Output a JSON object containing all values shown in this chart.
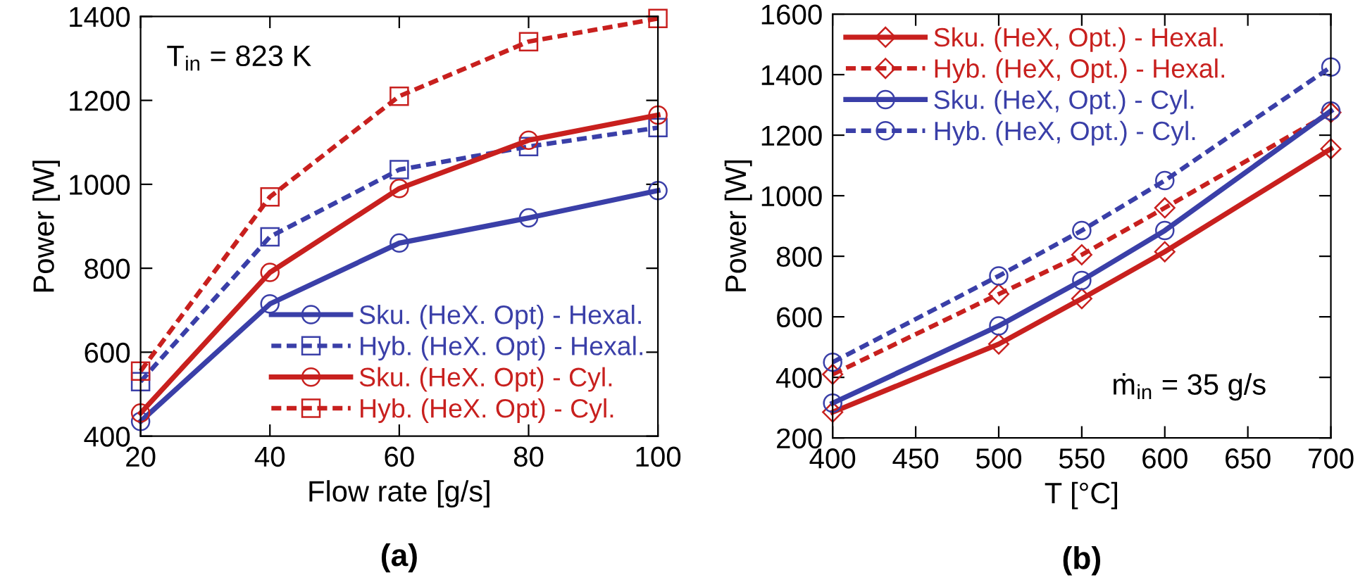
{
  "chart_data": [
    {
      "type": "line",
      "xlabel": "Flow rate [g/s]",
      "ylabel": "Power [W]",
      "x": [
        20,
        40,
        60,
        80,
        100
      ],
      "xlim": [
        20,
        100
      ],
      "ylim": [
        400,
        1400
      ],
      "xticks": [
        20,
        40,
        60,
        80,
        100
      ],
      "yticks": [
        400,
        600,
        800,
        1000,
        1200,
        1400
      ],
      "grid": false,
      "legend": "bottom right",
      "annotations": [
        "T$_{in}$ = 823 K",
        "(a)"
      ],
      "series": [
        {
          "name": "Sku. (HeX. Opt) - Hexal.",
          "color": "#3a3fa8",
          "marker": "circle",
          "line_style": "solid",
          "values": [
            435,
            715,
            860,
            920,
            985
          ]
        },
        {
          "name": "Hyb. (HeX. Opt) - Hexal.",
          "color": "#3a3fa8",
          "marker": "square",
          "line_style": "dashed",
          "values": [
            530,
            875,
            1035,
            1090,
            1135
          ]
        },
        {
          "name": "Sku. (HeX. Opt) - Cyl.",
          "color": "#c8201e",
          "marker": "circle",
          "line_style": "solid",
          "values": [
            455,
            790,
            990,
            1105,
            1165
          ]
        },
        {
          "name": "Hyb. (HeX. Opt) - Cyl.",
          "color": "#c8201e",
          "marker": "square",
          "line_style": "dashed",
          "values": [
            555,
            970,
            1210,
            1340,
            1395
          ]
        }
      ]
    },
    {
      "type": "line",
      "xlabel": "T [°C]",
      "ylabel": "Power [W]",
      "x": [
        400,
        500,
        550,
        600,
        700
      ],
      "xlim": [
        400,
        700
      ],
      "ylim": [
        200,
        1600
      ],
      "xticks": [
        400,
        450,
        500,
        550,
        600,
        650,
        700
      ],
      "yticks": [
        200,
        400,
        600,
        800,
        1000,
        1200,
        1400,
        1600
      ],
      "grid": false,
      "legend": "top left",
      "annotations": [
        "ṁ$_{in}$ = 35 g/s",
        "(b)"
      ],
      "series": [
        {
          "name": "Sku. (HeX, Opt.) - Hexal.",
          "color": "#c8201e",
          "marker": "diamond",
          "line_style": "solid",
          "values": [
            285,
            510,
            660,
            815,
            1155
          ]
        },
        {
          "name": "Hyb. (HeX, Opt.) - Hexal.",
          "color": "#c8201e",
          "marker": "diamond",
          "line_style": "dashed",
          "values": [
            410,
            675,
            805,
            960,
            1275
          ]
        },
        {
          "name": "Sku. (HeX, Opt.) - Cyl.",
          "color": "#3a3fa8",
          "marker": "circle",
          "line_style": "solid",
          "values": [
            315,
            570,
            720,
            885,
            1280
          ]
        },
        {
          "name": "Hyb. (HeX, Opt.) - Cyl.",
          "color": "#3a3fa8",
          "marker": "circle",
          "line_style": "dashed",
          "values": [
            450,
            735,
            885,
            1050,
            1425
          ]
        }
      ]
    }
  ]
}
